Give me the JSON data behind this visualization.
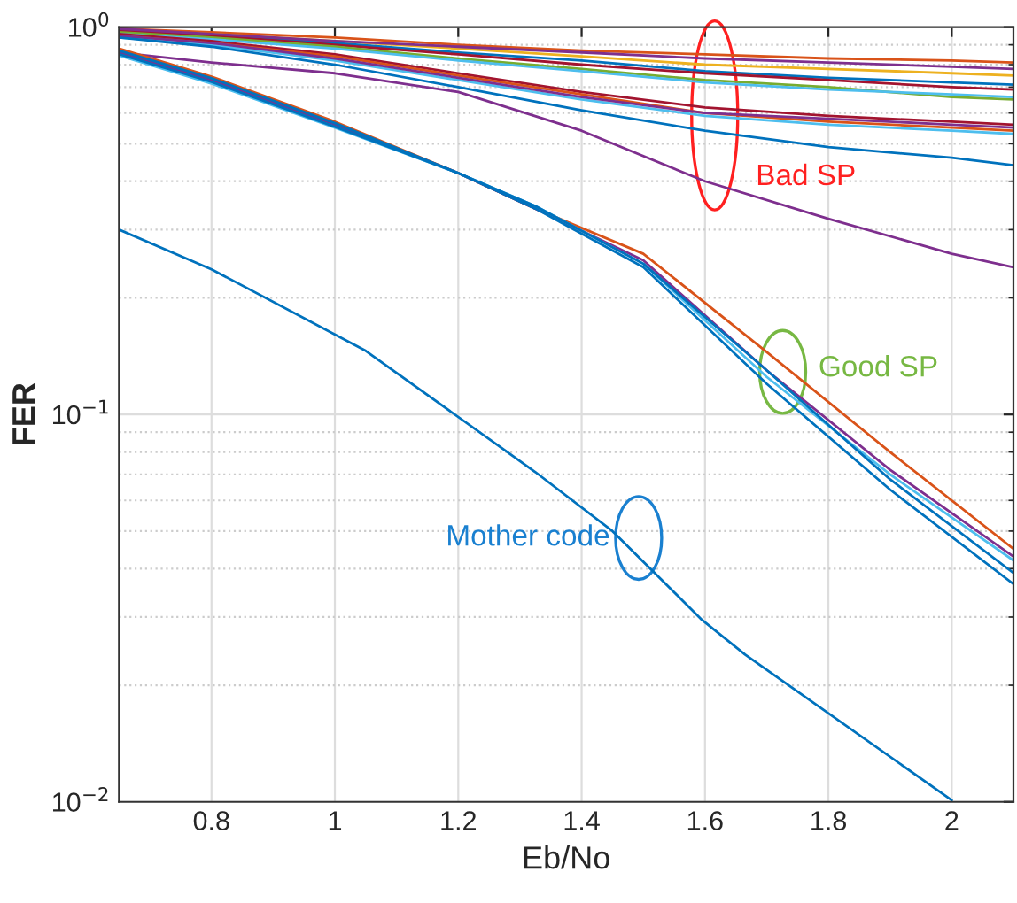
{
  "chart_data": {
    "type": "line",
    "xlabel": "Eb/No",
    "ylabel": "FER",
    "log": "y",
    "grid": true,
    "marker": "none",
    "line_style": "solid",
    "xlim": [
      0.65,
      2.1
    ],
    "xticks": [
      0.8,
      1,
      1.2,
      1.4,
      1.6,
      1.8,
      2
    ],
    "ylim": [
      0.01,
      1
    ],
    "yticks": [
      {
        "value": 0.01,
        "label": "10$^{−2}$"
      },
      {
        "value": 0.1,
        "label": "10$^{−1}$"
      },
      {
        "value": 1,
        "label": "10$^{0}$"
      }
    ],
    "series": [
      {
        "color": "#d95319",
        "x": [
          0.65,
          0.8,
          1.0,
          1.2,
          1.4,
          1.6,
          1.8,
          2.0,
          2.1
        ],
        "values": [
          0.99,
          0.97,
          0.94,
          0.9,
          0.87,
          0.85,
          0.83,
          0.82,
          0.81
        ]
      },
      {
        "color": "#edb120",
        "x": [
          0.65,
          0.8,
          1.0,
          1.2,
          1.4,
          1.6,
          1.8,
          2.0,
          2.1
        ],
        "values": [
          0.98,
          0.96,
          0.92,
          0.88,
          0.84,
          0.8,
          0.78,
          0.76,
          0.75
        ]
      },
      {
        "color": "#0072bd",
        "x": [
          0.65,
          0.8,
          1.0,
          1.2,
          1.4,
          1.6,
          1.8,
          2.0,
          2.1
        ],
        "values": [
          0.97,
          0.95,
          0.91,
          0.86,
          0.82,
          0.77,
          0.74,
          0.72,
          0.71
        ]
      },
      {
        "color": "#a2142f",
        "x": [
          0.65,
          0.8,
          1.0,
          1.2,
          1.4,
          1.6,
          1.8,
          2.0,
          2.1
        ],
        "values": [
          0.98,
          0.95,
          0.9,
          0.85,
          0.8,
          0.76,
          0.73,
          0.7,
          0.69
        ]
      },
      {
        "color": "#77ac30",
        "x": [
          0.65,
          0.8,
          1.0,
          1.2,
          1.4,
          1.6,
          1.8,
          2.0,
          2.1
        ],
        "values": [
          0.97,
          0.94,
          0.89,
          0.83,
          0.78,
          0.73,
          0.7,
          0.66,
          0.65
        ]
      },
      {
        "color": "#4dbeee",
        "x": [
          0.65,
          0.8,
          1.0,
          1.2,
          1.4,
          1.6,
          1.8,
          2.0,
          2.1
        ],
        "values": [
          0.96,
          0.93,
          0.88,
          0.82,
          0.77,
          0.72,
          0.69,
          0.67,
          0.66
        ]
      },
      {
        "color": "#7e2f8e",
        "x": [
          0.65,
          0.8,
          1.0,
          1.2,
          1.4,
          1.6,
          1.8,
          2.0,
          2.1
        ],
        "values": [
          0.99,
          0.96,
          0.92,
          0.89,
          0.86,
          0.83,
          0.81,
          0.79,
          0.78
        ]
      },
      {
        "color": "#a2142f",
        "x": [
          0.65,
          0.8,
          1.0,
          1.2,
          1.4,
          1.6,
          1.8,
          2.0,
          2.1
        ],
        "values": [
          0.96,
          0.92,
          0.85,
          0.76,
          0.68,
          0.62,
          0.59,
          0.57,
          0.56
        ]
      },
      {
        "color": "#d95319",
        "x": [
          0.65,
          0.8,
          1.0,
          1.2,
          1.4,
          1.6,
          1.8,
          2.0,
          2.1
        ],
        "values": [
          0.95,
          0.91,
          0.84,
          0.75,
          0.67,
          0.6,
          0.57,
          0.55,
          0.54
        ]
      },
      {
        "color": "#4dbeee",
        "x": [
          0.65,
          0.8,
          1.0,
          1.2,
          1.4,
          1.6,
          1.8,
          2.0,
          2.1
        ],
        "values": [
          0.94,
          0.9,
          0.82,
          0.73,
          0.65,
          0.59,
          0.56,
          0.54,
          0.53
        ]
      },
      {
        "color": "#7e2f8e",
        "x": [
          0.65,
          0.8,
          1.0,
          1.2,
          1.4,
          1.6,
          1.8,
          2.0,
          2.1
        ],
        "values": [
          0.95,
          0.91,
          0.83,
          0.74,
          0.66,
          0.6,
          0.58,
          0.56,
          0.55
        ]
      },
      {
        "color": "#0072bd",
        "x": [
          0.65,
          0.8,
          1.0,
          1.2,
          1.4,
          1.6,
          1.8,
          2.0,
          2.1
        ],
        "values": [
          0.94,
          0.89,
          0.8,
          0.7,
          0.61,
          0.54,
          0.49,
          0.46,
          0.44
        ]
      },
      {
        "color": "#7e2f8e",
        "x": [
          0.65,
          0.8,
          1.0,
          1.2,
          1.4,
          1.6,
          1.8,
          2.0,
          2.1
        ],
        "values": [
          0.86,
          0.81,
          0.76,
          0.68,
          0.54,
          0.4,
          0.32,
          0.26,
          0.24
        ]
      },
      {
        "color": "#d95319",
        "x": [
          0.65,
          0.8,
          1.0,
          1.2,
          1.325,
          1.5,
          1.7,
          1.9,
          2.1
        ],
        "values": [
          0.88,
          0.745,
          0.57,
          0.42,
          0.34,
          0.26,
          0.145,
          0.08,
          0.045
        ]
      },
      {
        "color": "#7e2f8e",
        "x": [
          0.65,
          0.8,
          1.0,
          1.2,
          1.325,
          1.5,
          1.7,
          1.9,
          2.1
        ],
        "values": [
          0.86,
          0.73,
          0.56,
          0.42,
          0.34,
          0.25,
          0.13,
          0.072,
          0.043
        ]
      },
      {
        "color": "#4dbeee",
        "x": [
          0.65,
          0.8,
          1.0,
          1.2,
          1.325,
          1.5,
          1.7,
          1.9,
          2.1
        ],
        "values": [
          0.845,
          0.715,
          0.55,
          0.42,
          0.345,
          0.245,
          0.125,
          0.07,
          0.042
        ]
      },
      {
        "color": "#0072bd",
        "x": [
          0.65,
          0.8,
          1.0,
          1.2,
          1.325,
          1.5,
          1.7,
          1.9,
          2.1
        ],
        "values": [
          0.87,
          0.738,
          0.565,
          0.42,
          0.345,
          0.245,
          0.13,
          0.068,
          0.039
        ]
      },
      {
        "color": "#0072bd",
        "x": [
          0.65,
          0.8,
          1.0,
          1.2,
          1.325,
          1.5,
          1.7,
          1.9,
          2.1
        ],
        "values": [
          0.852,
          0.722,
          0.553,
          0.42,
          0.34,
          0.24,
          0.12,
          0.064,
          0.0365
        ]
      },
      {
        "color": "#0072bd",
        "x": [
          0.65,
          0.8,
          1.05,
          1.325,
          1.45,
          1.595,
          1.665,
          2.0
        ],
        "values": [
          0.3,
          0.237,
          0.146,
          0.071,
          0.05,
          0.0295,
          0.024,
          0.0101
        ]
      }
    ],
    "annotations": [
      "Bad SP",
      "Good SP",
      {
        "text": "Mother code",
        "x": 1.446,
        "y": 0.048
      }
    ]
  }
}
